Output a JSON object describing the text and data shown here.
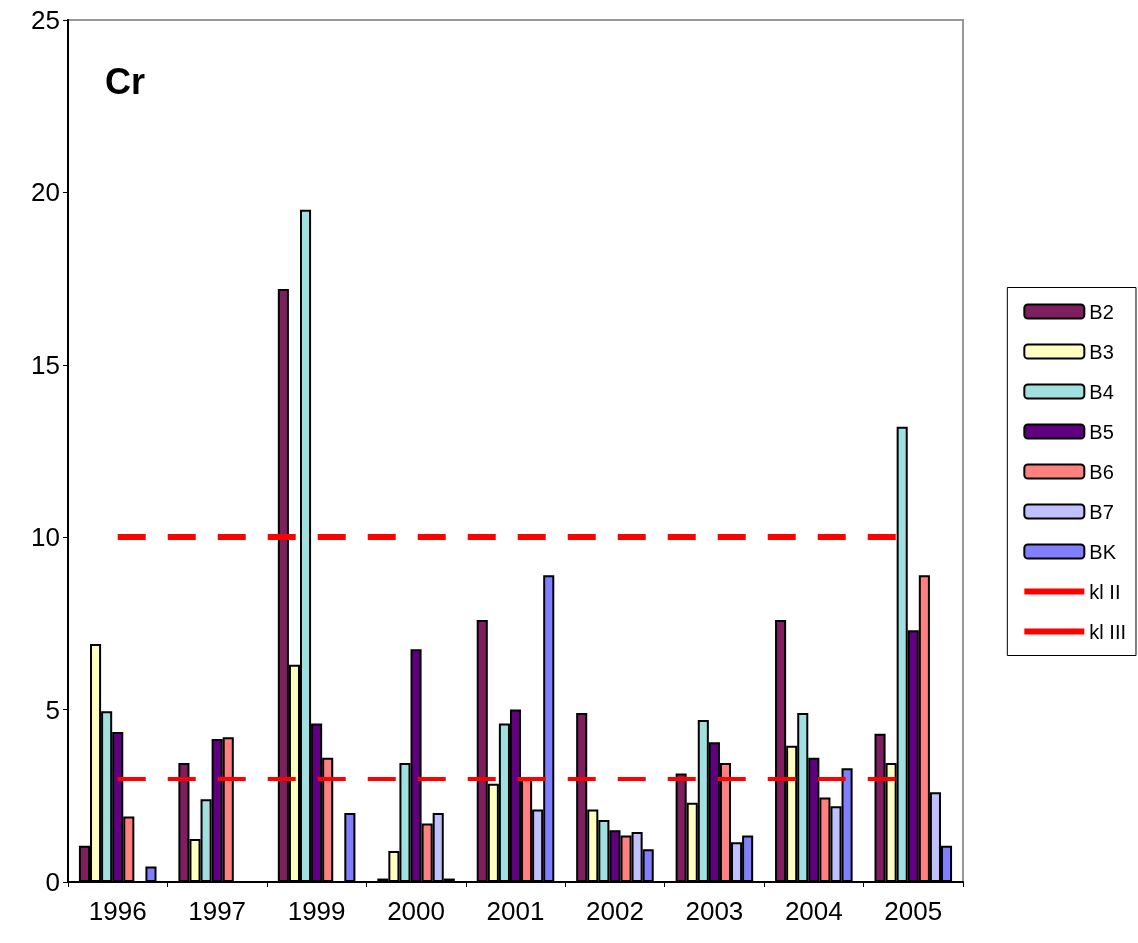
{
  "chart_data": {
    "type": "bar",
    "title": "Cr",
    "categories": [
      "1996",
      "1997",
      "1999",
      "2000",
      "2001",
      "2002",
      "2003",
      "2004",
      "2005"
    ],
    "series": [
      {
        "name": "B2",
        "color": "#7f1f5f",
        "values": [
          1.05,
          3.45,
          17.2,
          0.1,
          7.6,
          4.9,
          3.15,
          7.6,
          4.3
        ]
      },
      {
        "name": "B3",
        "color": "#ffffc0",
        "values": [
          6.9,
          1.25,
          6.3,
          0.9,
          2.85,
          2.1,
          2.3,
          3.95,
          3.45
        ]
      },
      {
        "name": "B4",
        "color": "#a0e0e0",
        "values": [
          4.95,
          2.4,
          19.5,
          3.45,
          4.6,
          1.8,
          4.7,
          4.9,
          13.2
        ]
      },
      {
        "name": "B5",
        "color": "#600080",
        "values": [
          4.35,
          4.15,
          4.6,
          6.75,
          5.0,
          1.5,
          4.05,
          3.6,
          7.3
        ]
      },
      {
        "name": "B6",
        "color": "#ff8080",
        "values": [
          1.9,
          4.2,
          3.6,
          1.7,
          3.0,
          1.35,
          3.45,
          2.45,
          8.9
        ]
      },
      {
        "name": "B7",
        "color": "#c0c0ff",
        "values": [
          null,
          null,
          null,
          2.0,
          2.1,
          1.45,
          1.15,
          2.2,
          2.6
        ]
      },
      {
        "name": "BK",
        "color": "#8080ff",
        "values": [
          0.45,
          null,
          2.0,
          0.1,
          8.9,
          0.95,
          1.35,
          3.3,
          1.05
        ]
      }
    ],
    "ref_lines": [
      {
        "axis": "y",
        "value": 3,
        "label": "kl II",
        "color": "#ff0000",
        "line_style": "dashed"
      },
      {
        "axis": "y",
        "value": 10,
        "label": "kl III",
        "color": "#ff0000",
        "line_style": "dashed"
      }
    ],
    "ylim": [
      0,
      25
    ],
    "yticks": [
      0,
      5,
      10,
      15,
      20,
      25
    ],
    "grid": false,
    "legend": "right"
  }
}
